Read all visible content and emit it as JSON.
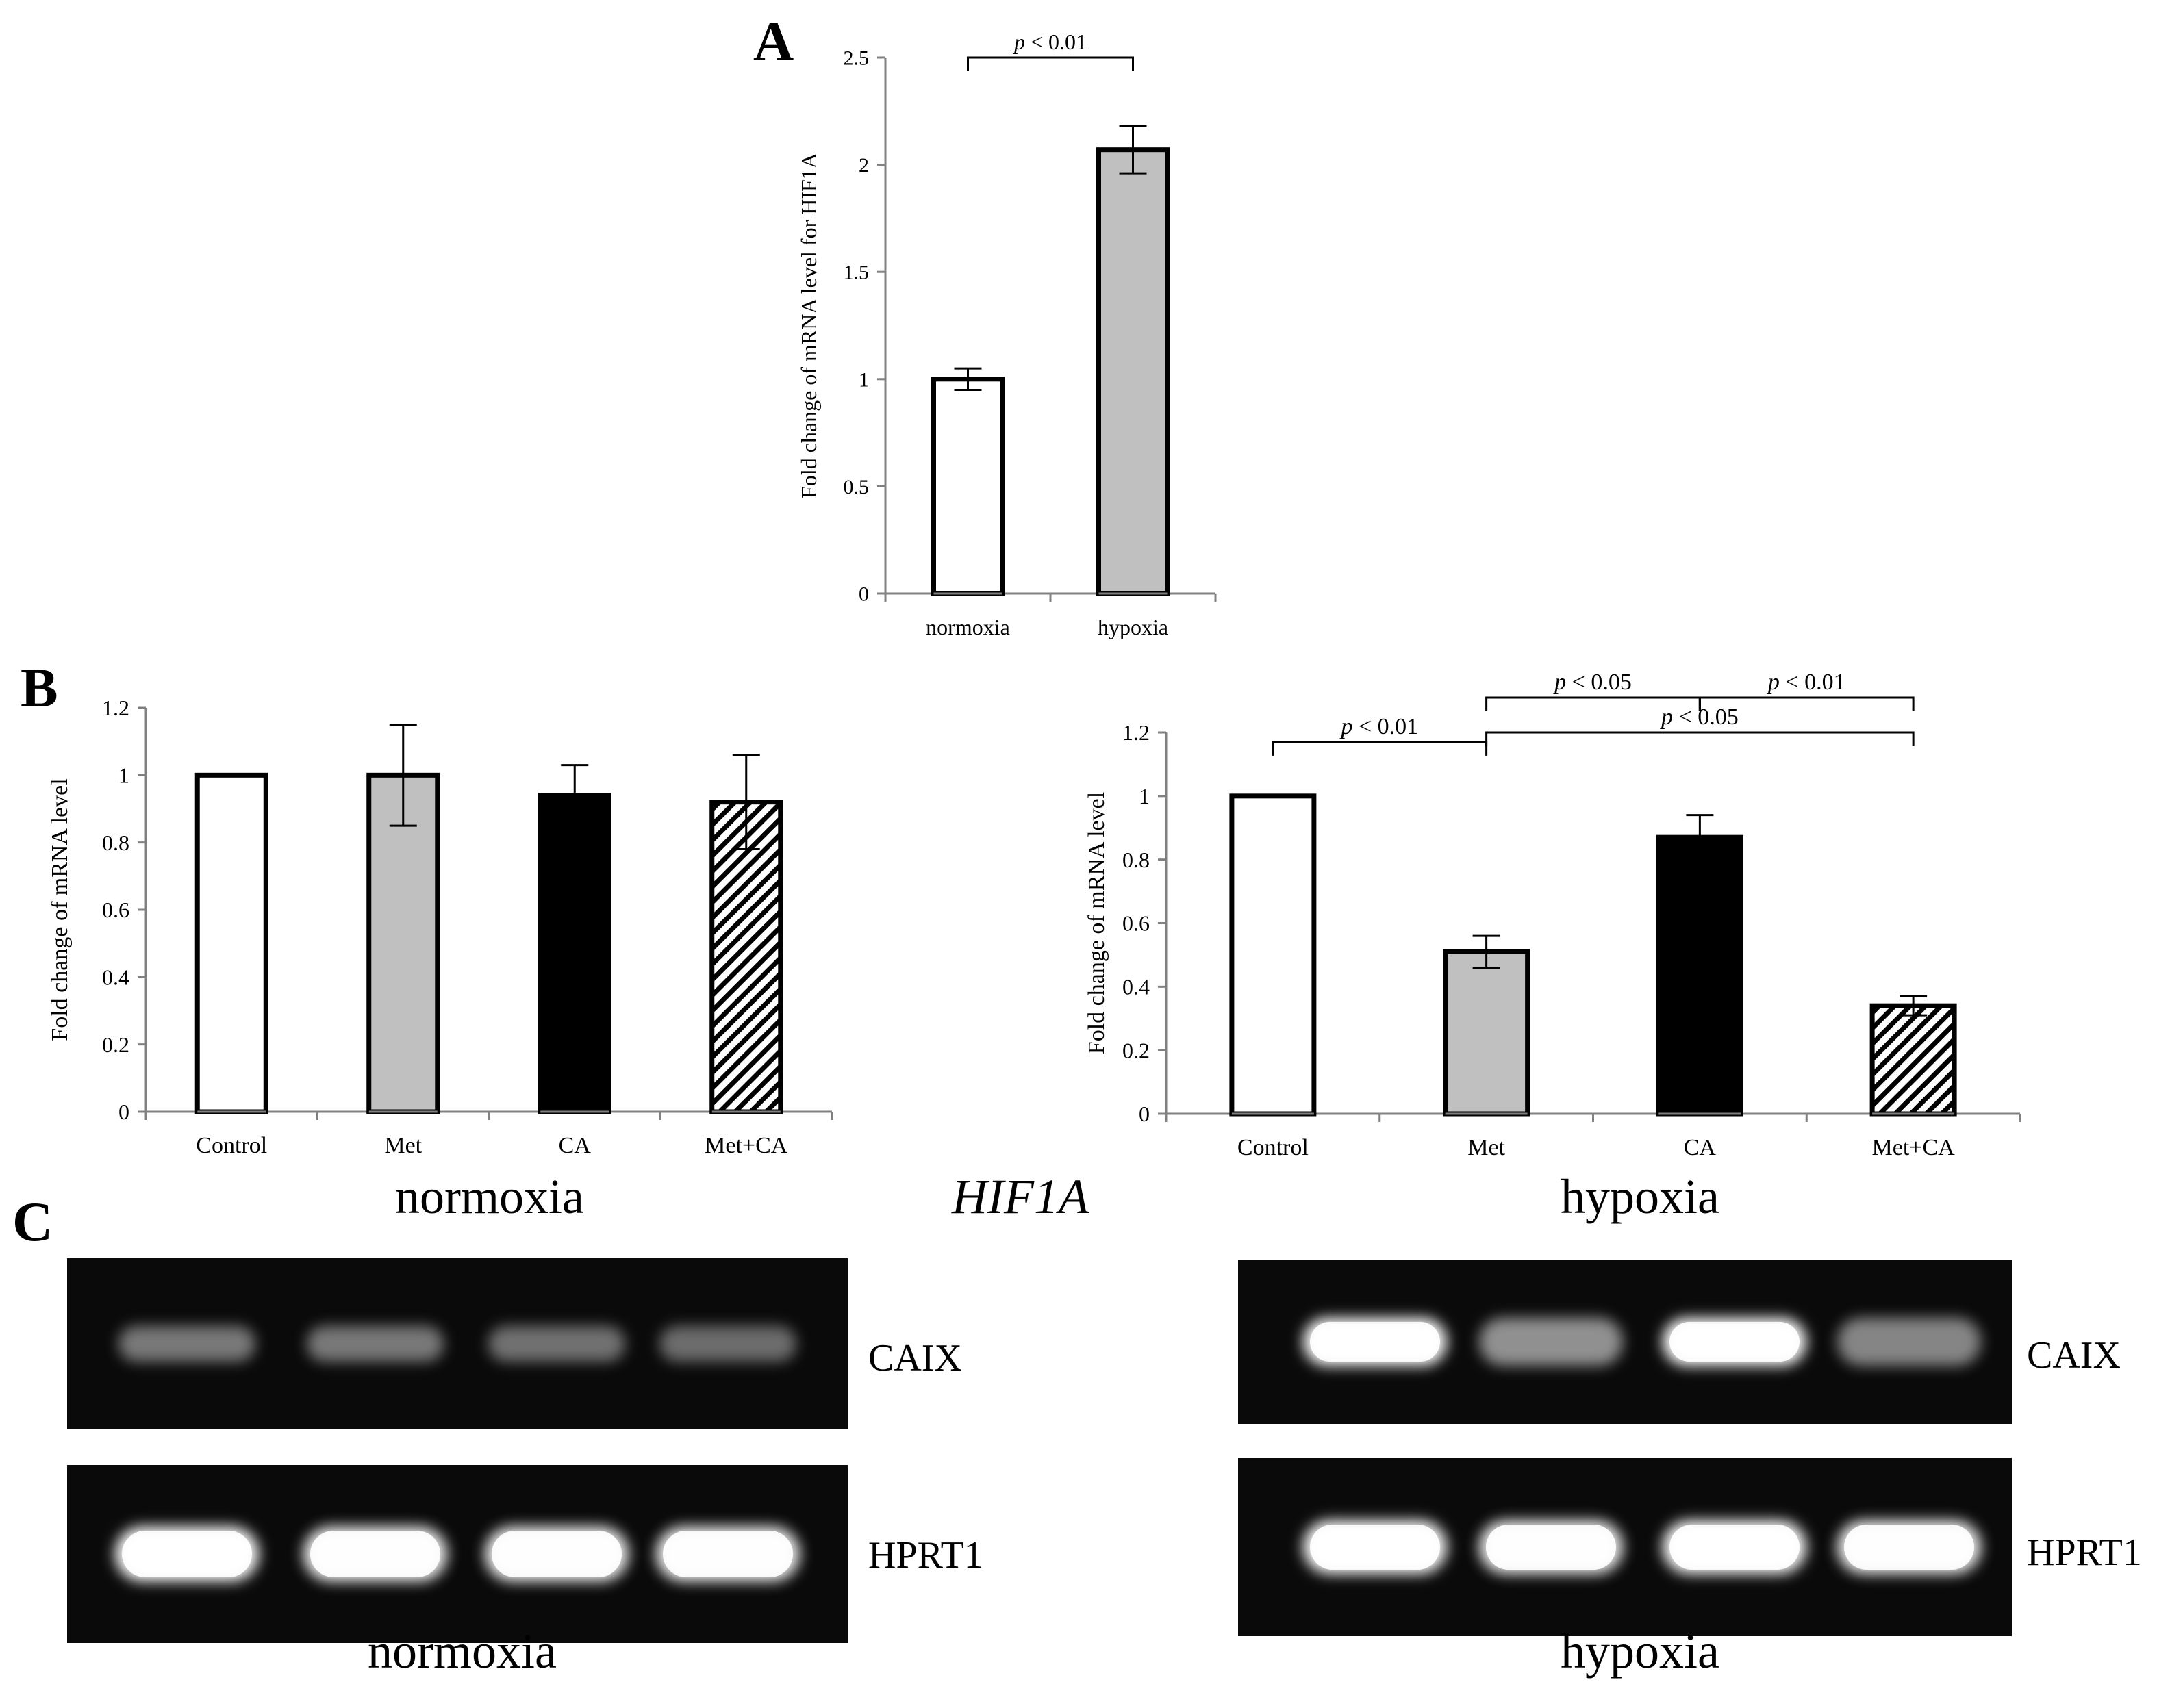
{
  "panels": {
    "a_label": "A",
    "b_label": "B",
    "c_label": "C",
    "b_center_label": "HIF1A",
    "b_normoxia_caption": "normoxia",
    "b_hypoxia_caption": "hypoxia"
  },
  "gels": {
    "caix_label": "CAIX",
    "hprt1_label": "HPRT1",
    "normoxia_caption": "normoxia",
    "hypoxia_caption": "hypoxia",
    "band_intensity_note": "",
    "normoxia_caix_intensity": [
      0.45,
      0.45,
      0.42,
      0.4
    ],
    "normoxia_hprt1_intensity": [
      1.0,
      0.95,
      0.95,
      0.95
    ],
    "hypoxia_caix_intensity": [
      1.0,
      0.55,
      1.0,
      0.5
    ],
    "hypoxia_hprt1_intensity": [
      1.0,
      0.95,
      1.0,
      0.95
    ]
  },
  "colors": {
    "control": "#ffffff",
    "met": "#c0c0c0",
    "ca": "#000000",
    "met_ca": "hatched",
    "gel_background": "#0a0a0a"
  },
  "chart_data": [
    {
      "id": "A",
      "type": "bar",
      "categories": [
        "normoxia",
        "hypoxia"
      ],
      "values": [
        1.0,
        2.07
      ],
      "errors": [
        0.05,
        0.11
      ],
      "fills": [
        "#ffffff",
        "#c0c0c0"
      ],
      "ylabel": "Fold change of mRNA level for HIF1A",
      "xlabel": "",
      "ylim": [
        0,
        2.5
      ],
      "yticks": [
        0,
        0.5,
        1,
        1.5,
        2,
        2.5
      ],
      "ytick_labels": [
        "0",
        "0.5",
        "1",
        "1.5",
        "2",
        "2.5"
      ],
      "grid": false,
      "brackets": [
        {
          "from": 0,
          "to": 1,
          "text_p": "p",
          "text_rest": " < 0.01",
          "y": 2.5
        }
      ]
    },
    {
      "id": "B-normoxia",
      "type": "bar",
      "categories": [
        "Control",
        "Met",
        "CA",
        "Met+CA"
      ],
      "values": [
        1.0,
        1.0,
        0.94,
        0.92
      ],
      "errors": [
        0,
        0.15,
        0.09,
        0.14
      ],
      "fills": [
        "#ffffff",
        "#c0c0c0",
        "#000000",
        "hatched"
      ],
      "ylabel": "Fold change of mRNA level",
      "xlabel": "",
      "ylim": [
        0,
        1.2
      ],
      "yticks": [
        0,
        0.2,
        0.4,
        0.6,
        0.8,
        1,
        1.2
      ],
      "ytick_labels": [
        "0",
        "0.2",
        "0.4",
        "0.6",
        "0.8",
        "1",
        "1.2"
      ],
      "grid": false,
      "brackets": []
    },
    {
      "id": "B-hypoxia",
      "type": "bar",
      "categories": [
        "Control",
        "Met",
        "CA",
        "Met+CA"
      ],
      "values": [
        1.0,
        0.51,
        0.87,
        0.34
      ],
      "errors": [
        0,
        0.05,
        0.07,
        0.03
      ],
      "fills": [
        "#ffffff",
        "#c0c0c0",
        "#000000",
        "hatched"
      ],
      "ylabel": "Fold change of mRNA level",
      "xlabel": "",
      "ylim": [
        0,
        1.2
      ],
      "yticks": [
        0,
        0.2,
        0.4,
        0.6,
        0.8,
        1,
        1.2
      ],
      "ytick_labels": [
        "0",
        "0.2",
        "0.4",
        "0.6",
        "0.8",
        "1",
        "1.2"
      ],
      "grid": false,
      "brackets": [
        {
          "from": 0,
          "to": 1,
          "text_p": "p",
          "text_rest": " < 0.01",
          "y": 1.17
        },
        {
          "from": 1,
          "to": 3,
          "text_p": "p",
          "text_rest": " < 0.05",
          "y": 1.2
        },
        {
          "from": 1,
          "to": 2,
          "text_p": "p",
          "text_rest": " < 0.05",
          "y": 1.31
        },
        {
          "from": 2,
          "to": 3,
          "text_p": "p",
          "text_rest": " < 0.01",
          "y": 1.31
        }
      ]
    }
  ]
}
